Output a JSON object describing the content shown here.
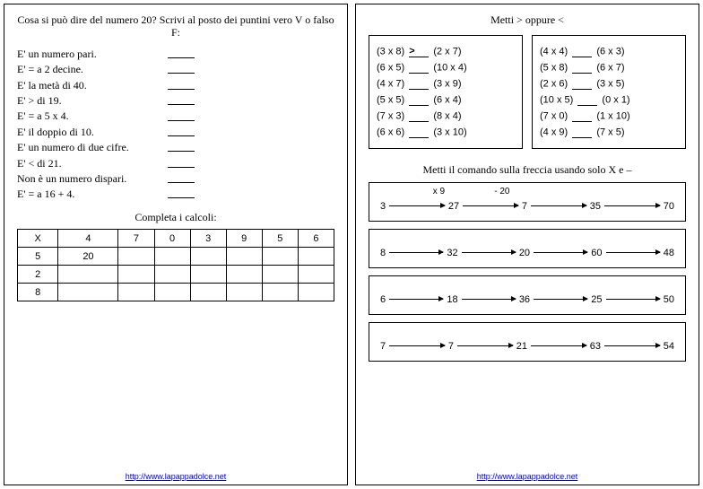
{
  "left": {
    "title": "Cosa si può dire del numero 20? Scrivi al posto dei puntini vero V o falso F:",
    "statements": [
      "E' un numero pari.",
      "E' = a 2 decine.",
      "E' la metà di 40.",
      "E' > di 19.",
      "E' = a 5 x 4.",
      "E' il doppio di 10.",
      "E' un numero di due cifre.",
      "E' < di 21.",
      "Non è un numero dispari.",
      "E' = a 16 + 4."
    ],
    "subtitle": "Completa i calcoli:",
    "table": {
      "header": [
        "X",
        "4",
        "7",
        "0",
        "3",
        "9",
        "5",
        "6"
      ],
      "rows": [
        [
          "5",
          "20",
          "",
          "",
          "",
          "",
          "",
          ""
        ],
        [
          "2",
          "",
          "",
          "",
          "",
          "",
          "",
          ""
        ],
        [
          "8",
          "",
          "",
          "",
          "",
          "",
          "",
          ""
        ]
      ]
    },
    "footer_url": "http://www.lapappadolce.net"
  },
  "right": {
    "title": "Metti > oppure <",
    "comp_left": [
      {
        "a": "(3 x 8)",
        "b": "(2 x 7)",
        "sym": ">"
      },
      {
        "a": "(6 x 5)",
        "b": "(10 x 4)",
        "sym": ""
      },
      {
        "a": "(4 x 7)",
        "b": "(3 x 9)",
        "sym": ""
      },
      {
        "a": "(5 x 5)",
        "b": "(6 x 4)",
        "sym": ""
      },
      {
        "a": "(7 x 3)",
        "b": "(8 x 4)",
        "sym": ""
      },
      {
        "a": "(6 x 6)",
        "b": "(3 x 10)",
        "sym": ""
      }
    ],
    "comp_right": [
      {
        "a": "(4 x 4)",
        "b": "(6 x 3)",
        "sym": ""
      },
      {
        "a": "(5 x 8)",
        "b": "(6 x 7)",
        "sym": ""
      },
      {
        "a": "(2 x 6)",
        "b": "(3 x 5)",
        "sym": ""
      },
      {
        "a": "(10 x 5)",
        "b": "(0 x 1)",
        "sym": ""
      },
      {
        "a": "(7 x 0)",
        "b": "(1 x 10)",
        "sym": ""
      },
      {
        "a": "(4 x 9)",
        "b": "(7 x 5)",
        "sym": ""
      }
    ],
    "arrow_title": "Metti il comando sulla freccia usando solo X e –",
    "arrow_rows": [
      {
        "nums": [
          "3",
          "27",
          "7",
          "35",
          "70"
        ],
        "ops": [
          "x 9",
          "- 20",
          "",
          ""
        ]
      },
      {
        "nums": [
          "8",
          "32",
          "20",
          "60",
          "48"
        ],
        "ops": [
          "",
          "",
          "",
          ""
        ]
      },
      {
        "nums": [
          "6",
          "18",
          "36",
          "25",
          "50"
        ],
        "ops": [
          "",
          "",
          "",
          ""
        ]
      },
      {
        "nums": [
          "7",
          "7",
          "21",
          "63",
          "54"
        ],
        "ops": [
          "",
          "",
          "",
          ""
        ]
      }
    ],
    "footer_url": "http://www.lapappadolce.net"
  }
}
